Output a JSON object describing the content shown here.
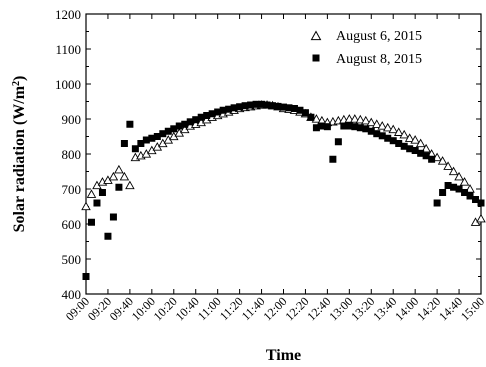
{
  "chart_data": {
    "type": "scatter",
    "xlabel": "Time",
    "ylabel": "Solar radiation (W/m²)",
    "ylabel_parts": {
      "main": "Solar radiation (W/m",
      "sup": "2",
      "end": ")"
    },
    "ylim": [
      400,
      1200
    ],
    "yticks": [
      400,
      500,
      600,
      700,
      800,
      900,
      1000,
      1100,
      1200
    ],
    "xlim": [
      "09:00",
      "15:00"
    ],
    "xticks": [
      "09:00",
      "09:20",
      "09:40",
      "10:00",
      "10:20",
      "10:40",
      "11:00",
      "11:20",
      "11:40",
      "12:00",
      "12:20",
      "12:40",
      "13:00",
      "13:20",
      "13:40",
      "14:00",
      "14:20",
      "14:40",
      "15:00"
    ],
    "legend_position": "top-right",
    "series": [
      {
        "name": "August 6, 2015",
        "marker": "open-triangle",
        "points": [
          [
            "09:00",
            650
          ],
          [
            "09:05",
            685
          ],
          [
            "09:10",
            710
          ],
          [
            "09:15",
            720
          ],
          [
            "09:20",
            725
          ],
          [
            "09:25",
            735
          ],
          [
            "09:30",
            755
          ],
          [
            "09:35",
            735
          ],
          [
            "09:40",
            710
          ],
          [
            "09:45",
            790
          ],
          [
            "09:50",
            795
          ],
          [
            "09:55",
            800
          ],
          [
            "10:00",
            810
          ],
          [
            "10:05",
            820
          ],
          [
            "10:10",
            830
          ],
          [
            "10:15",
            840
          ],
          [
            "10:20",
            850
          ],
          [
            "10:25",
            860
          ],
          [
            "10:30",
            870
          ],
          [
            "10:35",
            880
          ],
          [
            "10:40",
            885
          ],
          [
            "10:45",
            890
          ],
          [
            "10:50",
            898
          ],
          [
            "10:55",
            905
          ],
          [
            "11:00",
            910
          ],
          [
            "11:05",
            915
          ],
          [
            "11:10",
            920
          ],
          [
            "11:15",
            925
          ],
          [
            "11:20",
            930
          ],
          [
            "11:25",
            933
          ],
          [
            "11:30",
            935
          ],
          [
            "11:35",
            938
          ],
          [
            "11:40",
            940
          ],
          [
            "11:45",
            940
          ],
          [
            "11:50",
            938
          ],
          [
            "11:55",
            935
          ],
          [
            "12:00",
            930
          ],
          [
            "12:05",
            928
          ],
          [
            "12:10",
            925
          ],
          [
            "12:15",
            920
          ],
          [
            "12:20",
            915
          ],
          [
            "12:25",
            905
          ],
          [
            "12:30",
            900
          ],
          [
            "12:35",
            895
          ],
          [
            "12:40",
            890
          ],
          [
            "12:45",
            892
          ],
          [
            "12:50",
            895
          ],
          [
            "12:55",
            898
          ],
          [
            "13:00",
            900
          ],
          [
            "13:05",
            900
          ],
          [
            "13:10",
            898
          ],
          [
            "13:15",
            895
          ],
          [
            "13:20",
            890
          ],
          [
            "13:25",
            885
          ],
          [
            "13:30",
            880
          ],
          [
            "13:35",
            875
          ],
          [
            "13:40",
            870
          ],
          [
            "13:45",
            862
          ],
          [
            "13:50",
            855
          ],
          [
            "13:55",
            845
          ],
          [
            "14:00",
            840
          ],
          [
            "14:05",
            830
          ],
          [
            "14:10",
            815
          ],
          [
            "14:15",
            800
          ],
          [
            "14:20",
            790
          ],
          [
            "14:25",
            780
          ],
          [
            "14:30",
            765
          ],
          [
            "14:35",
            750
          ],
          [
            "14:40",
            735
          ],
          [
            "14:45",
            720
          ],
          [
            "14:50",
            700
          ],
          [
            "14:55",
            605
          ],
          [
            "15:00",
            615
          ]
        ]
      },
      {
        "name": "August 8, 2015",
        "marker": "filled-square",
        "points": [
          [
            "09:00",
            450
          ],
          [
            "09:05",
            605
          ],
          [
            "09:10",
            660
          ],
          [
            "09:15",
            690
          ],
          [
            "09:20",
            565
          ],
          [
            "09:25",
            620
          ],
          [
            "09:30",
            705
          ],
          [
            "09:35",
            830
          ],
          [
            "09:40",
            885
          ],
          [
            "09:45",
            815
          ],
          [
            "09:50",
            830
          ],
          [
            "09:55",
            840
          ],
          [
            "10:00",
            845
          ],
          [
            "10:05",
            850
          ],
          [
            "10:10",
            858
          ],
          [
            "10:15",
            865
          ],
          [
            "10:20",
            872
          ],
          [
            "10:25",
            880
          ],
          [
            "10:30",
            885
          ],
          [
            "10:35",
            892
          ],
          [
            "10:40",
            898
          ],
          [
            "10:45",
            905
          ],
          [
            "10:50",
            910
          ],
          [
            "10:55",
            915
          ],
          [
            "11:00",
            920
          ],
          [
            "11:05",
            925
          ],
          [
            "11:10",
            928
          ],
          [
            "11:15",
            932
          ],
          [
            "11:20",
            935
          ],
          [
            "11:25",
            938
          ],
          [
            "11:30",
            940
          ],
          [
            "11:35",
            942
          ],
          [
            "11:40",
            942
          ],
          [
            "11:45",
            940
          ],
          [
            "11:50",
            938
          ],
          [
            "11:55",
            936
          ],
          [
            "12:00",
            934
          ],
          [
            "12:05",
            932
          ],
          [
            "12:10",
            930
          ],
          [
            "12:15",
            925
          ],
          [
            "12:20",
            918
          ],
          [
            "12:25",
            905
          ],
          [
            "12:30",
            875
          ],
          [
            "12:35",
            880
          ],
          [
            "12:40",
            878
          ],
          [
            "12:45",
            785
          ],
          [
            "12:50",
            835
          ],
          [
            "12:55",
            880
          ],
          [
            "13:00",
            880
          ],
          [
            "13:05",
            878
          ],
          [
            "13:10",
            875
          ],
          [
            "13:15",
            872
          ],
          [
            "13:20",
            865
          ],
          [
            "13:25",
            858
          ],
          [
            "13:30",
            852
          ],
          [
            "13:35",
            845
          ],
          [
            "13:40",
            838
          ],
          [
            "13:45",
            830
          ],
          [
            "13:50",
            822
          ],
          [
            "13:55",
            815
          ],
          [
            "14:00",
            810
          ],
          [
            "14:05",
            802
          ],
          [
            "14:10",
            795
          ],
          [
            "14:15",
            785
          ],
          [
            "14:20",
            660
          ],
          [
            "14:25",
            690
          ],
          [
            "14:30",
            710
          ],
          [
            "14:35",
            705
          ],
          [
            "14:40",
            700
          ],
          [
            "14:45",
            690
          ],
          [
            "14:50",
            680
          ],
          [
            "14:55",
            670
          ],
          [
            "15:00",
            660
          ]
        ]
      }
    ]
  }
}
